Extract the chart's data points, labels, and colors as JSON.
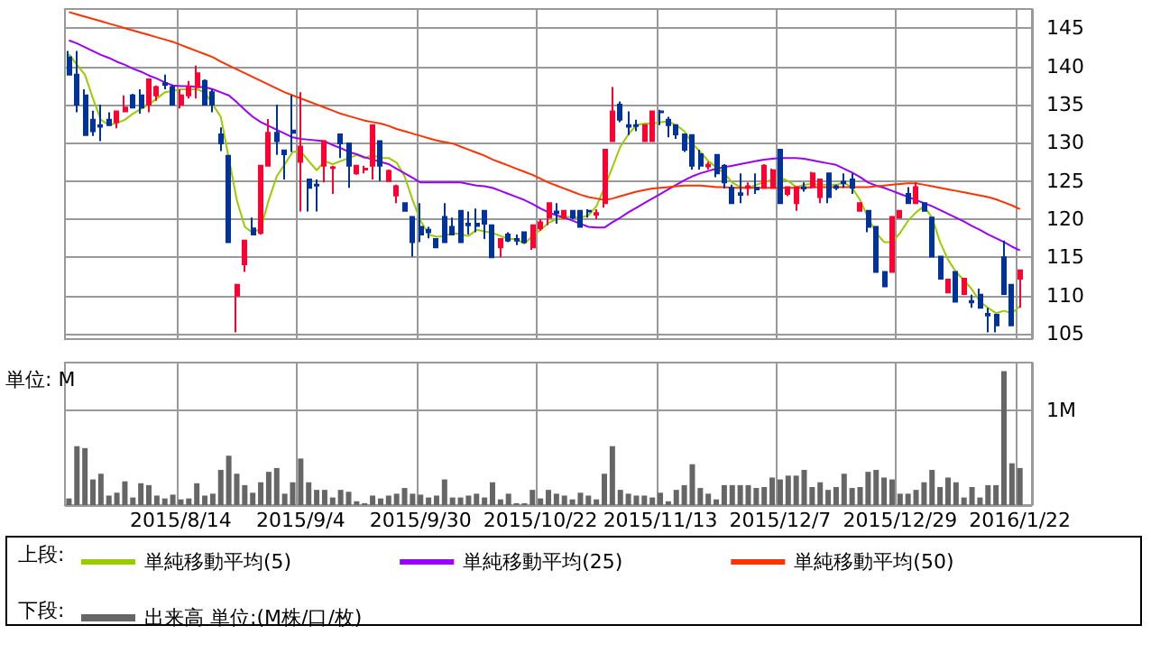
{
  "chart_data": [
    {
      "type": "candlestick",
      "legend_title": "上段:",
      "categories": [
        null,
        null,
        null,
        null,
        null,
        null,
        null,
        null,
        null,
        null,
        null,
        null,
        null,
        null,
        "2015/8/14",
        null,
        null,
        null,
        null,
        null,
        null,
        null,
        null,
        null,
        null,
        null,
        null,
        null,
        null,
        "2015/9/4",
        null,
        null,
        null,
        null,
        null,
        null,
        null,
        null,
        null,
        null,
        null,
        null,
        null,
        null,
        "2015/9/30",
        null,
        null,
        null,
        null,
        null,
        null,
        null,
        null,
        null,
        null,
        null,
        null,
        null,
        null,
        "2015/10/22",
        null,
        null,
        null,
        null,
        null,
        null,
        null,
        null,
        null,
        null,
        null,
        null,
        null,
        null,
        "2015/11/13",
        null,
        null,
        null,
        null,
        null,
        null,
        null,
        null,
        null,
        null,
        null,
        null,
        null,
        null,
        "2015/12/7",
        null,
        null,
        null,
        null,
        null,
        null,
        null,
        null,
        null,
        null,
        null,
        null,
        null,
        null,
        "2015/12/29",
        null,
        null,
        null,
        null,
        null,
        null,
        null,
        null,
        null,
        null,
        null,
        null,
        null,
        null,
        "2016/1/22"
      ],
      "ohlc": [
        [
          141.2,
          142,
          138.9,
          138.9
        ],
        [
          138.9,
          142,
          134,
          135
        ],
        [
          136.2,
          137,
          131,
          131
        ],
        [
          133,
          134.2,
          130.9,
          131.5
        ],
        [
          132.3,
          135,
          130.2,
          132.1
        ],
        [
          133,
          134,
          132.2,
          132.3
        ],
        [
          132.7,
          134.2,
          131.9,
          134.1
        ],
        [
          134.1,
          136.2,
          134,
          134.6
        ],
        [
          136.2,
          136.4,
          134.6,
          134.6
        ],
        [
          136.2,
          137,
          133.8,
          134.6
        ],
        [
          135,
          138.3,
          134,
          138.3
        ],
        [
          136.2,
          137.5,
          135.5,
          137.3
        ],
        [
          137.8,
          138.9,
          137,
          137.6
        ],
        [
          137.3,
          137.5,
          135,
          135
        ],
        [
          135,
          137,
          134.5,
          136.2
        ],
        [
          136.2,
          138.1,
          135.8,
          137.3
        ],
        [
          137.3,
          140.1,
          135.8,
          139.1
        ],
        [
          138.1,
          138.3,
          135,
          135
        ],
        [
          136.6,
          137,
          134,
          135
        ],
        [
          131.1,
          132,
          128.9,
          129.9
        ],
        [
          128.3,
          128.3,
          117,
          117
        ],
        [
          110,
          111.4,
          105.2,
          111.4
        ],
        [
          114.1,
          117.2,
          113.1,
          117.2
        ],
        [
          118.8,
          120.2,
          118,
          118
        ],
        [
          118.2,
          127,
          118,
          127
        ],
        [
          127,
          133.1,
          127,
          131.3
        ],
        [
          131.3,
          135,
          128.4,
          130.2
        ],
        [
          129,
          129.1,
          125.2,
          128.5
        ],
        [
          131.6,
          136.2,
          128.8,
          131.3
        ],
        [
          127.5,
          136.6,
          121,
          129.5
        ],
        [
          125.2,
          125.2,
          121,
          124.1
        ],
        [
          124.5,
          125.2,
          121,
          124.4
        ],
        [
          127,
          130.2,
          124.8,
          130.2
        ],
        [
          126.7,
          127,
          123.3,
          126.8
        ],
        [
          131.1,
          131.1,
          128,
          129.9
        ],
        [
          129.9,
          129.9,
          124.1,
          127
        ],
        [
          126,
          127,
          125.8,
          127
        ],
        [
          126.5,
          127,
          126,
          126.6
        ],
        [
          127,
          132.3,
          125.2,
          132.3
        ],
        [
          130.2,
          130.2,
          125,
          127
        ],
        [
          125,
          126.5,
          125,
          126.3
        ],
        [
          123.1,
          124.5,
          122.1,
          124.3
        ],
        [
          122.1,
          122.1,
          121.1,
          121.1
        ],
        [
          120.3,
          120.3,
          115.1,
          117
        ],
        [
          119,
          122.1,
          117,
          118
        ],
        [
          118.6,
          119,
          117.5,
          118.3
        ],
        [
          117.4,
          117.4,
          116.3,
          116.3
        ],
        [
          120.3,
          122.1,
          117,
          117
        ],
        [
          119,
          120.2,
          118,
          118
        ],
        [
          121.1,
          121.1,
          117,
          117
        ],
        [
          119.4,
          121,
          118,
          119.2
        ],
        [
          119.4,
          121.4,
          118.3,
          119.1
        ],
        [
          121.1,
          121.1,
          117.4,
          119.4
        ],
        [
          119.2,
          119.2,
          115,
          115
        ],
        [
          116.3,
          117.4,
          115,
          117.4
        ],
        [
          118,
          118.3,
          117,
          117.2
        ],
        [
          117.4,
          118,
          116.6,
          117.2
        ],
        [
          118.3,
          118.3,
          116.8,
          117
        ],
        [
          116.3,
          119.2,
          116,
          119.2
        ],
        [
          118.8,
          120,
          118.5,
          119.6
        ],
        [
          120.2,
          122.1,
          119.2,
          122.1
        ],
        [
          121,
          122.1,
          119.4,
          120.8
        ],
        [
          120.2,
          121.1,
          120,
          121.1
        ],
        [
          121.1,
          121.1,
          120,
          120.2
        ],
        [
          121.1,
          121.1,
          119,
          119
        ],
        [
          121.1,
          121.3,
          120.2,
          121
        ],
        [
          120.6,
          121.3,
          120,
          120.8
        ],
        [
          122.1,
          129.1,
          121.5,
          129.1
        ],
        [
          130.2,
          137.3,
          130.2,
          134.1
        ],
        [
          135,
          135.4,
          132.7,
          133
        ],
        [
          132.3,
          134.1,
          131,
          132.1
        ],
        [
          132.3,
          133,
          131.5,
          132.2
        ],
        [
          130.2,
          132.3,
          130.2,
          132.3
        ],
        [
          130.2,
          134.1,
          130.2,
          134.1
        ],
        [
          134.1,
          134.3,
          132.3,
          134
        ],
        [
          133,
          133.4,
          130.7,
          132.3
        ],
        [
          132.3,
          132.3,
          130.5,
          131.1
        ],
        [
          131.1,
          131.1,
          128.8,
          129.1
        ],
        [
          131,
          131.1,
          126.5,
          127
        ],
        [
          128.5,
          129.1,
          126.5,
          127
        ],
        [
          126.9,
          127.5,
          126.5,
          127.1
        ],
        [
          128.4,
          128.4,
          125.5,
          126
        ],
        [
          127,
          127.2,
          124,
          124.8
        ],
        [
          124.1,
          124.5,
          122.1,
          122.1
        ],
        [
          123.4,
          126,
          122.1,
          123.2
        ],
        [
          124.1,
          124.8,
          123.1,
          124.3
        ],
        [
          124.1,
          126,
          123.3,
          123.9
        ],
        [
          124.1,
          127.2,
          124.1,
          127
        ],
        [
          124.1,
          126.6,
          124,
          126.4
        ],
        [
          129.1,
          129.1,
          122.1,
          122.1
        ],
        [
          123.3,
          124.2,
          123,
          124.2
        ],
        [
          122.1,
          124.3,
          121.1,
          124.2
        ],
        [
          124.2,
          124.8,
          123.6,
          124
        ],
        [
          124.2,
          126.2,
          124,
          126
        ],
        [
          122.9,
          125.2,
          122.1,
          125.2
        ],
        [
          126,
          126,
          122.1,
          122.9
        ],
        [
          124.3,
          124.5,
          123.8,
          124.1
        ],
        [
          124.9,
          126,
          124.1,
          124.7
        ],
        [
          125.2,
          126,
          123.3,
          124.1
        ],
        [
          121.1,
          122.1,
          121.1,
          122.1
        ],
        [
          121.1,
          121.1,
          118.3,
          119
        ],
        [
          119,
          119,
          113.1,
          113.1
        ],
        [
          113.1,
          113.1,
          111.2,
          111.2
        ],
        [
          113.1,
          120.3,
          113.1,
          120.3
        ],
        [
          120.2,
          121.1,
          120.2,
          121.1
        ],
        [
          123.3,
          124.2,
          122.1,
          122.1
        ],
        [
          122.1,
          124.8,
          122.1,
          124.2
        ],
        [
          122.1,
          122.1,
          121.1,
          121.1
        ],
        [
          120.2,
          120.2,
          115.1,
          115.1
        ],
        [
          115.1,
          115.1,
          112.2,
          112.2
        ],
        [
          110.4,
          112.1,
          110.4,
          112.1
        ],
        [
          113.1,
          113.1,
          109.2,
          109.2
        ],
        [
          110.2,
          112.2,
          110.2,
          112.2
        ],
        [
          109.3,
          110.1,
          108.4,
          109.1
        ],
        [
          110.1,
          110.9,
          108.4,
          108.4
        ],
        [
          107.6,
          108.4,
          105.2,
          107.4
        ],
        [
          107.5,
          107.5,
          105.2,
          106.1
        ],
        [
          115,
          117.2,
          110.2,
          110.2
        ],
        [
          111.4,
          111.4,
          106.1,
          106.1
        ],
        [
          112.2,
          113.3,
          108.4,
          113.3
        ]
      ],
      "series": [
        {
          "type": "line",
          "name": "単純移動平均(5)",
          "color": "#99cc00",
          "values": [
            141.6,
            140.2,
            138.9,
            135.8,
            133,
            132.3,
            132.6,
            133,
            133.8,
            134.4,
            135,
            135.8,
            136.6,
            136.8,
            137,
            137,
            137,
            136.6,
            135,
            133.4,
            128,
            122.5,
            119,
            118.2,
            118.8,
            122.5,
            125.6,
            127.2,
            128.8,
            128.9,
            127.6,
            126.4,
            127.6,
            127.2,
            127.6,
            128,
            128.4,
            128,
            128.4,
            128,
            128,
            127.4,
            125.6,
            122.5,
            119.8,
            118,
            117.7,
            117.8,
            118.2,
            118,
            117.8,
            118.6,
            118.4,
            118.2,
            117.8,
            117.4,
            117.4,
            116.8,
            117.8,
            118.6,
            119.5,
            120,
            120.3,
            120.3,
            120.2,
            120.5,
            121.7,
            124.1,
            126.8,
            129.5,
            131.1,
            132.3,
            132.5,
            132.5,
            132.7,
            132.8,
            132.3,
            131.5,
            129.9,
            128.8,
            127.6,
            126.8,
            126,
            124.8,
            124.2,
            124.1,
            124.5,
            124.8,
            125.2,
            125.4,
            125,
            124.2,
            124.5,
            124.6,
            124.5,
            124.5,
            124.5,
            124.8,
            124.1,
            122.5,
            120.2,
            118.2,
            117,
            117,
            118.2,
            119.8,
            120.9,
            121.7,
            120.2,
            117,
            114.7,
            113.1,
            112,
            110.8,
            109.2,
            108.4,
            107.7,
            108,
            107.7,
            108.6
          ]
        },
        {
          "type": "line",
          "name": "単純移動平均(25)",
          "color": "#9900ff",
          "values": [
            143.4,
            143,
            142.5,
            142,
            141.5,
            141.1,
            140.6,
            140.2,
            139.7,
            139.3,
            138.8,
            138.4,
            137.9,
            137.5,
            137.4,
            137.4,
            137.3,
            137.3,
            137,
            136.6,
            136.2,
            135.3,
            134.3,
            133.4,
            132.7,
            132.2,
            131.7,
            131.2,
            130.7,
            130.5,
            130.4,
            130.3,
            130.2,
            129.7,
            129.3,
            128.8,
            128.5,
            128.1,
            127.8,
            127.5,
            127.2,
            126.6,
            126,
            125.4,
            124.8,
            124.8,
            124.8,
            124.8,
            124.8,
            124.8,
            124.6,
            124.4,
            124.3,
            124.1,
            123.7,
            123.3,
            122.9,
            122.5,
            122,
            121.4,
            120.9,
            120.5,
            120.2,
            119.8,
            119.4,
            119,
            118.9,
            118.9,
            119.6,
            120.2,
            120.9,
            121.5,
            122.1,
            122.7,
            123.3,
            123.9,
            124.5,
            125.1,
            125.6,
            126,
            126.3,
            126.6,
            126.8,
            127,
            127.2,
            127.4,
            127.6,
            127.8,
            127.9,
            128,
            128,
            128,
            127.9,
            127.7,
            127.5,
            127.3,
            127.1,
            126.6,
            126.1,
            125.5,
            124.8,
            124.4,
            124.1,
            123.7,
            123.3,
            122.9,
            122.5,
            122.1,
            121.7,
            121.2,
            120.7,
            120.2,
            119.7,
            119.1,
            118.6,
            118,
            117.5,
            117,
            116.4,
            115.9
          ]
        },
        {
          "type": "line",
          "name": "単純移動平均(50)",
          "color": "#ff3300",
          "values": [
            147.1,
            146.8,
            146.5,
            146.2,
            145.9,
            145.6,
            145.3,
            145,
            144.7,
            144.4,
            144.1,
            143.8,
            143.5,
            143.2,
            142.8,
            142.4,
            142,
            141.6,
            141.2,
            140.6,
            140.1,
            139.6,
            139.1,
            138.6,
            138.1,
            137.6,
            137.1,
            136.6,
            136.2,
            135.8,
            135.4,
            135,
            134.6,
            134.2,
            133.8,
            133.5,
            133.2,
            132.9,
            132.7,
            132.5,
            132.2,
            131.8,
            131.5,
            131.2,
            130.9,
            130.6,
            130.3,
            130.1,
            129.9,
            129.5,
            129.1,
            128.7,
            128.3,
            127.8,
            127.4,
            127,
            126.6,
            126.2,
            125.8,
            125.3,
            124.8,
            124.4,
            124,
            123.6,
            123.2,
            122.9,
            122.7,
            122.5,
            122.7,
            123,
            123.3,
            123.6,
            123.8,
            124,
            124.1,
            124.2,
            124.3,
            124.4,
            124.4,
            124.4,
            124.3,
            124.2,
            124.2,
            124.1,
            124.1,
            124.1,
            124.1,
            124.1,
            124.1,
            124.1,
            124.1,
            124.1,
            124.1,
            124.2,
            124.2,
            124.2,
            124.2,
            124.2,
            124.2,
            124.2,
            124.2,
            124.3,
            124.4,
            124.5,
            124.6,
            124.7,
            124.7,
            124.5,
            124.3,
            124.1,
            123.9,
            123.7,
            123.5,
            123.3,
            123.1,
            122.9,
            122.6,
            122.2,
            121.8,
            121.3
          ]
        }
      ],
      "ylim": [
        104.3,
        147.5
      ],
      "yticks": [
        105,
        110,
        115,
        120,
        125,
        130,
        135,
        140,
        145
      ],
      "grid": true,
      "legend": "bottom",
      "tick_labels": "y"
    },
    {
      "type": "bar",
      "legend_title": "下段:",
      "ylabel": "単位: M",
      "categories": [
        null,
        null,
        null,
        null,
        null,
        null,
        null,
        null,
        null,
        null,
        null,
        null,
        null,
        null,
        "2015/8/14",
        null,
        null,
        null,
        null,
        null,
        null,
        null,
        null,
        null,
        null,
        null,
        null,
        null,
        null,
        "2015/9/4",
        null,
        null,
        null,
        null,
        null,
        null,
        null,
        null,
        null,
        null,
        null,
        null,
        null,
        null,
        "2015/9/30",
        null,
        null,
        null,
        null,
        null,
        null,
        null,
        null,
        null,
        null,
        null,
        null,
        null,
        null,
        "2015/10/22",
        null,
        null,
        null,
        null,
        null,
        null,
        null,
        null,
        null,
        null,
        null,
        null,
        null,
        null,
        "2015/11/13",
        null,
        null,
        null,
        null,
        null,
        null,
        null,
        null,
        null,
        null,
        null,
        null,
        null,
        null,
        "2015/12/7",
        null,
        null,
        null,
        null,
        null,
        null,
        null,
        null,
        null,
        null,
        null,
        null,
        null,
        null,
        "2015/12/29",
        null,
        null,
        null,
        null,
        null,
        null,
        null,
        null,
        null,
        null,
        null,
        null,
        null,
        null,
        "2016/1/22"
      ],
      "series": [
        {
          "name": "出来高 単位:(M株/口/枚)",
          "color": "#666666",
          "values": [
            0.07,
            0.62,
            0.6,
            0.27,
            0.33,
            0.1,
            0.13,
            0.25,
            0.08,
            0.23,
            0.21,
            0.1,
            0.07,
            0.11,
            0.06,
            0.07,
            0.23,
            0.1,
            0.12,
            0.37,
            0.52,
            0.33,
            0.21,
            0.13,
            0.24,
            0.35,
            0.39,
            0.12,
            0.24,
            0.49,
            0.24,
            0.16,
            0.16,
            0.08,
            0.16,
            0.14,
            0.04,
            0.02,
            0.1,
            0.07,
            0.1,
            0.12,
            0.18,
            0.12,
            0.11,
            0.08,
            0.1,
            0.27,
            0.08,
            0.08,
            0.1,
            0.12,
            0.08,
            0.24,
            0.06,
            0.12,
            0.02,
            0.02,
            0.16,
            0.07,
            0.16,
            0.12,
            0.1,
            0.06,
            0.13,
            0.1,
            0.06,
            0.33,
            0.62,
            0.16,
            0.12,
            0.1,
            0.1,
            0.08,
            0.13,
            0.04,
            0.16,
            0.21,
            0.43,
            0.18,
            0.12,
            0.06,
            0.21,
            0.21,
            0.21,
            0.21,
            0.18,
            0.19,
            0.29,
            0.27,
            0.31,
            0.31,
            0.37,
            0.19,
            0.24,
            0.16,
            0.19,
            0.33,
            0.18,
            0.19,
            0.35,
            0.37,
            0.29,
            0.27,
            0.12,
            0.12,
            0.16,
            0.24,
            0.37,
            0.19,
            0.29,
            0.24,
            0.08,
            0.19,
            0.08,
            0.21,
            0.21,
            1.41,
            0.44,
            0.39
          ]
        }
      ],
      "ylim": [
        0,
        1.5
      ],
      "yticks": [
        {
          "value": 0,
          "label": null
        },
        {
          "value": 1,
          "label": "1M"
        }
      ],
      "grid": true,
      "legend": "bottom"
    }
  ]
}
